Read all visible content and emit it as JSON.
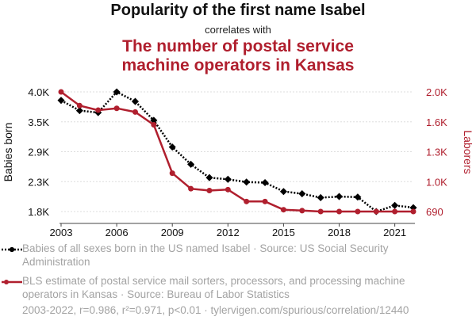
{
  "header": {
    "title": "Popularity of the first name Isabel",
    "subtitle": "correlates with",
    "title2_line1": "The number of postal service",
    "title2_line2": "machine operators in Kansas"
  },
  "legend": {
    "series1": "Babies of all sexes born in the US named Isabel · Source: US Social Security Administration",
    "series2": "BLS estimate of postal service mail sorters, processors, and processing machine operators in Kansas · Source: Bureau of Labor Statistics"
  },
  "footer": "2003-2022, r=0.986, r²=0.971, p<0.01 · tylervigen.com/spurious/correlation/12440",
  "colors": {
    "series1": "#000000",
    "series2": "#b01f2e",
    "grid": "#dddddd",
    "muted": "#a3a3a3"
  },
  "chart_data": {
    "type": "line",
    "x": [
      2003,
      2004,
      2005,
      2006,
      2007,
      2008,
      2009,
      2010,
      2011,
      2012,
      2013,
      2014,
      2015,
      2016,
      2017,
      2018,
      2019,
      2020,
      2021,
      2022
    ],
    "xticks": [
      "2003",
      "2006",
      "2009",
      "2012",
      "2015",
      "2018",
      "2021"
    ],
    "xlim": [
      2003,
      2022
    ],
    "left_axis": {
      "label": "Babies born",
      "ticks": [
        "4.0K",
        "3.5K",
        "2.9K",
        "2.3K",
        "1.8K"
      ],
      "tick_values": [
        3982,
        3444,
        2906,
        2368,
        1830
      ],
      "ylim": [
        1830,
        3982
      ]
    },
    "right_axis": {
      "label": "Laborers",
      "ticks": [
        "2.0K",
        "1.6K",
        "1.3K",
        "1.0K",
        "690"
      ],
      "tick_values": [
        2000,
        1672.5,
        1345,
        1017.5,
        690
      ],
      "ylim": [
        690,
        2000
      ]
    },
    "series": [
      {
        "axis": "left",
        "marker": "diamond",
        "style": "dotted",
        "values": [
          3830,
          3645,
          3610,
          3982,
          3810,
          3470,
          2990,
          2680,
          2440,
          2410,
          2360,
          2350,
          2190,
          2150,
          2080,
          2100,
          2090,
          1830,
          1940,
          1900
        ]
      },
      {
        "axis": "right",
        "marker": "circle",
        "style": "solid",
        "values": [
          2000,
          1850,
          1800,
          1820,
          1780,
          1640,
          1110,
          940,
          920,
          930,
          800,
          800,
          710,
          700,
          690,
          690,
          690,
          690,
          690,
          690
        ]
      }
    ]
  }
}
